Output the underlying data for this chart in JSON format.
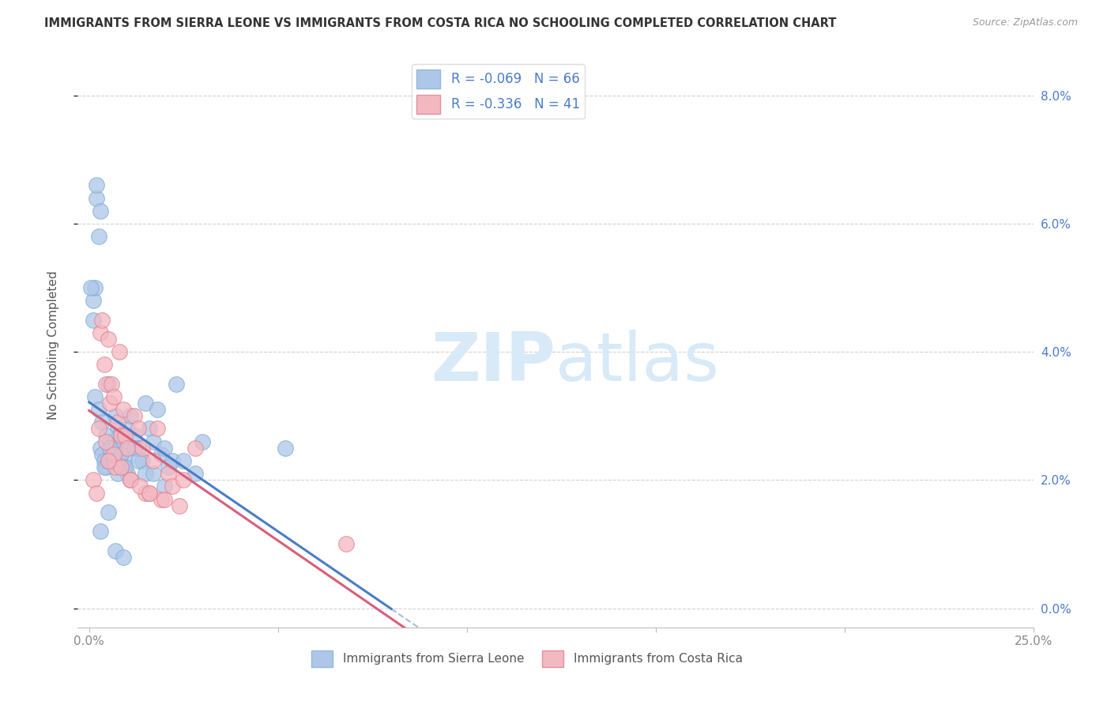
{
  "title": "IMMIGRANTS FROM SIERRA LEONE VS IMMIGRANTS FROM COSTA RICA NO SCHOOLING COMPLETED CORRELATION CHART",
  "source": "Source: ZipAtlas.com",
  "ylabel": "No Schooling Completed",
  "ytick_vals": [
    0.0,
    2.0,
    4.0,
    6.0,
    8.0
  ],
  "xtick_vals": [
    0.0,
    5.0,
    10.0,
    15.0,
    20.0,
    25.0
  ],
  "xmin": -0.3,
  "xmax": 25.0,
  "ymin": -0.3,
  "ymax": 8.5,
  "legend1_label": "R = -0.069   N = 66",
  "legend2_label": "R = -0.336   N = 41",
  "legend1_color": "#aec6e8",
  "legend2_color": "#f4b8c1",
  "line1_color": "#4a7cc7",
  "line2_color": "#d95f7a",
  "scatter1_color": "#aec6e8",
  "scatter2_color": "#f4b8c1",
  "watermark_zip": "ZIP",
  "watermark_atlas": "atlas",
  "watermark_color": "#d8eaf8",
  "sl_solid_end_x": 8.0,
  "cr_solid_end_x": 10.0,
  "sierra_leone_x": [
    0.1,
    0.15,
    0.2,
    0.25,
    0.3,
    0.35,
    0.4,
    0.45,
    0.5,
    0.55,
    0.6,
    0.65,
    0.7,
    0.75,
    0.8,
    0.85,
    0.9,
    0.95,
    1.0,
    1.1,
    1.2,
    1.3,
    1.4,
    1.5,
    1.6,
    1.7,
    1.8,
    1.9,
    2.0,
    2.1,
    2.2,
    2.3,
    2.5,
    2.8,
    3.0,
    0.05,
    0.1,
    0.2,
    0.3,
    0.4,
    0.5,
    0.6,
    0.7,
    0.8,
    0.9,
    1.0,
    1.1,
    1.2,
    1.3,
    1.5,
    1.7,
    2.0,
    0.15,
    0.25,
    0.35,
    0.45,
    0.55,
    0.65,
    0.75,
    0.85,
    0.95,
    5.2,
    0.3,
    0.5,
    0.7,
    0.9
  ],
  "sierra_leone_y": [
    4.8,
    5.0,
    6.4,
    5.8,
    2.5,
    2.4,
    2.3,
    2.2,
    3.5,
    2.6,
    2.5,
    2.4,
    3.0,
    2.8,
    2.7,
    2.6,
    2.5,
    2.3,
    2.8,
    3.0,
    2.7,
    2.5,
    2.3,
    3.2,
    2.8,
    2.6,
    3.1,
    2.4,
    2.5,
    2.2,
    2.3,
    3.5,
    2.3,
    2.1,
    2.6,
    5.0,
    4.5,
    6.6,
    6.2,
    2.2,
    2.3,
    2.4,
    2.5,
    2.3,
    2.2,
    2.1,
    2.0,
    2.5,
    2.3,
    2.1,
    2.1,
    1.9,
    3.3,
    3.1,
    2.9,
    2.7,
    2.5,
    2.3,
    2.1,
    2.4,
    2.2,
    2.5,
    1.2,
    1.5,
    0.9,
    0.8
  ],
  "costa_rica_x": [
    0.1,
    0.2,
    0.3,
    0.35,
    0.4,
    0.45,
    0.5,
    0.55,
    0.6,
    0.65,
    0.7,
    0.75,
    0.8,
    0.85,
    0.9,
    0.95,
    1.0,
    1.1,
    1.2,
    1.3,
    1.4,
    1.5,
    1.6,
    1.7,
    1.8,
    1.9,
    2.0,
    2.1,
    2.2,
    2.4,
    2.5,
    2.8,
    0.25,
    0.45,
    0.65,
    0.85,
    1.1,
    1.35,
    1.6,
    6.8,
    0.5
  ],
  "costa_rica_y": [
    2.0,
    1.8,
    4.3,
    4.5,
    3.8,
    3.5,
    4.2,
    3.2,
    3.5,
    3.3,
    2.2,
    2.9,
    4.0,
    2.7,
    3.1,
    2.7,
    2.5,
    2.0,
    3.0,
    2.8,
    2.5,
    1.8,
    1.8,
    2.3,
    2.8,
    1.7,
    1.7,
    2.1,
    1.9,
    1.6,
    2.0,
    2.5,
    2.8,
    2.6,
    2.4,
    2.2,
    2.0,
    1.9,
    1.8,
    1.0,
    2.3
  ]
}
